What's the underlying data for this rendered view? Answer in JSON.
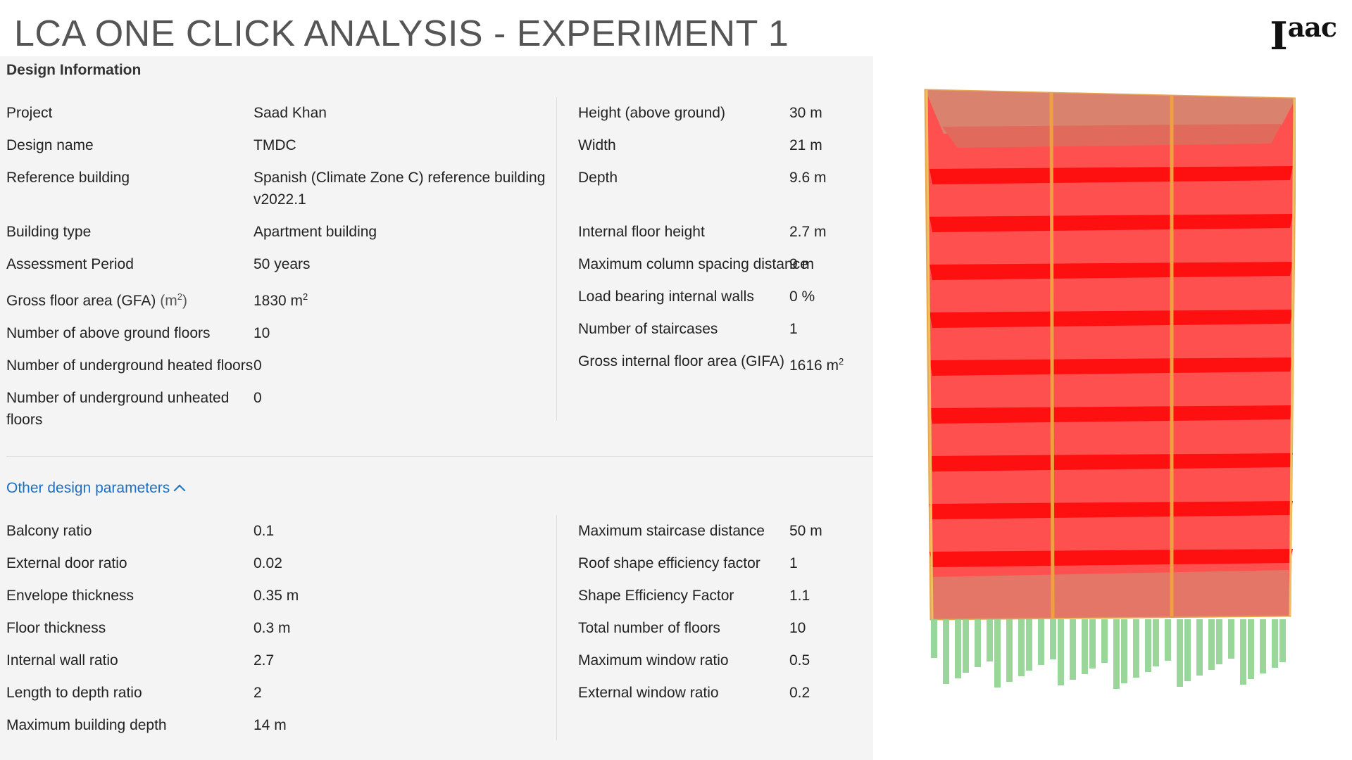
{
  "slide": {
    "title": "LCA ONE CLICK ANALYSIS - EXPERIMENT 1",
    "logo_main": "I",
    "logo_sup": "aac"
  },
  "design_info": {
    "header": "Design Information",
    "left": [
      {
        "label": "Project",
        "value": "Saad Khan"
      },
      {
        "label": "Design name",
        "value": "TMDC"
      },
      {
        "label": "Reference building",
        "value": "Spanish (Climate Zone C) reference building v2022.1"
      },
      {
        "label": "Building type",
        "value": "Apartment building"
      },
      {
        "label": "Assessment Period",
        "value": "50 years"
      },
      {
        "label": "Gross floor area (GFA)",
        "label_unit": "(m",
        "label_unit_sup": "2",
        "label_unit_end": ")",
        "value": "1830 m",
        "value_sup": "2"
      },
      {
        "label": "Number of above ground floors",
        "value": "10"
      },
      {
        "label": "Number of underground heated floors",
        "value": "0"
      },
      {
        "label": "Number of underground unheated floors",
        "value": "0"
      }
    ],
    "right": [
      {
        "label": "Height (above ground)",
        "value": "30 m"
      },
      {
        "label": "Width",
        "value": "21 m"
      },
      {
        "label": "Depth",
        "value": "9.6 m"
      },
      {
        "label": "Internal floor height",
        "value": "2.7 m"
      },
      {
        "label": "Maximum column spacing distance",
        "value": "9 m"
      },
      {
        "label": "Load bearing internal walls",
        "value": "0 %"
      },
      {
        "label": "Number of staircases",
        "value": "1"
      },
      {
        "label": "Gross internal floor area (GIFA)",
        "value": "1616 m",
        "value_sup": "2"
      }
    ]
  },
  "other_params": {
    "toggle_label": "Other design parameters",
    "left": [
      {
        "label": "Balcony ratio",
        "value": "0.1"
      },
      {
        "label": "External door ratio",
        "value": "0.02"
      },
      {
        "label": "Envelope thickness",
        "value": "0.35 m"
      },
      {
        "label": "Floor thickness",
        "value": "0.3 m"
      },
      {
        "label": "Internal wall ratio",
        "value": "2.7"
      },
      {
        "label": "Length to depth ratio",
        "value": "2"
      },
      {
        "label": "Maximum building depth",
        "value": "14 m"
      }
    ],
    "right": [
      {
        "label": "Maximum staircase distance",
        "value": "50 m"
      },
      {
        "label": "Roof shape efficiency factor",
        "value": "1"
      },
      {
        "label": "Shape Efficiency Factor",
        "value": "1.1"
      },
      {
        "label": "Total number of floors",
        "value": "10"
      },
      {
        "label": "Maximum window ratio",
        "value": "0.5"
      },
      {
        "label": "External window ratio",
        "value": "0.2"
      }
    ]
  },
  "colors": {
    "model_red": "#ff1a1a",
    "model_pale": "#e07060",
    "model_frame": "#f0a040",
    "pile_green": "#8fd18f",
    "link_blue": "#1d6fc4"
  }
}
